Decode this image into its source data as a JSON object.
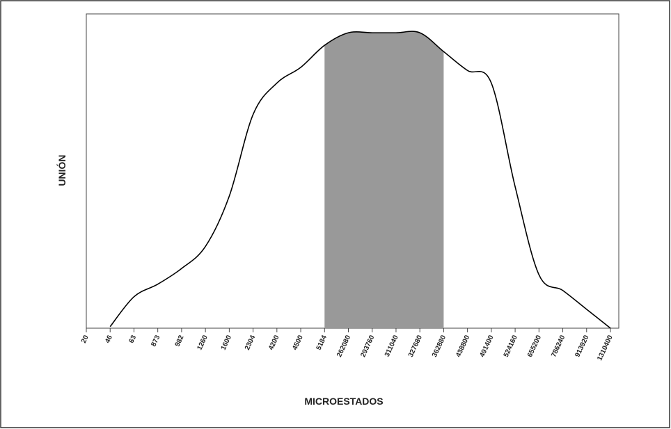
{
  "chart_data": {
    "type": "line",
    "x_label": "MICROESTADOS",
    "y_label": "UNIÓN",
    "categories": [
      "20",
      "46",
      "63",
      "873",
      "982",
      "1260",
      "1600",
      "2304",
      "4200",
      "4500",
      "5184",
      "262080",
      "293760",
      "311040",
      "327680",
      "362880",
      "438800",
      "491400",
      "524160",
      "655200",
      "786240",
      "913920",
      "1310400"
    ],
    "values": [
      null,
      0.5,
      10,
      14,
      19,
      26,
      42,
      68,
      78,
      83,
      90,
      94,
      94,
      94,
      94,
      88,
      82,
      78,
      45,
      17,
      12,
      6,
      0
    ],
    "color": "#000000",
    "ylim": [
      0,
      100
    ],
    "shade": {
      "start": 10,
      "end": 15,
      "color": "#999999"
    }
  }
}
